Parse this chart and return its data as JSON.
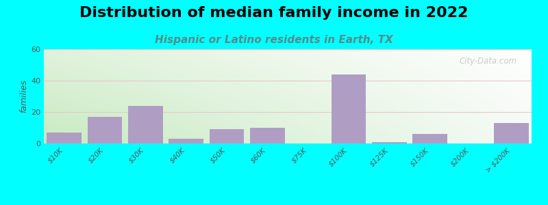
{
  "title": "Distribution of median family income in 2022",
  "subtitle": "Hispanic or Latino residents in Earth, TX",
  "xlabel": "",
  "ylabel": "families",
  "categories": [
    "$10K",
    "$20K",
    "$30K",
    "$40K",
    "$50K",
    "$60K",
    "$75K",
    "$100K",
    "$125K",
    "$150K",
    "$200K",
    "> $200K"
  ],
  "values": [
    7,
    17,
    24,
    3,
    9,
    10,
    0,
    44,
    1,
    6,
    0,
    13
  ],
  "bar_color": "#b09dc4",
  "background_left": "#c8e6c0",
  "background_right": "#f0f8f0",
  "background_topleft": "#e8f5e0",
  "background_topright": "#ffffff",
  "outer_background": "#00ffff",
  "ylim": [
    0,
    60
  ],
  "yticks": [
    0,
    20,
    40,
    60
  ],
  "title_fontsize": 16,
  "subtitle_fontsize": 11,
  "subtitle_color": "#5a8a8a",
  "watermark": "City-Data.com",
  "grid_color": "#e8e8e8"
}
